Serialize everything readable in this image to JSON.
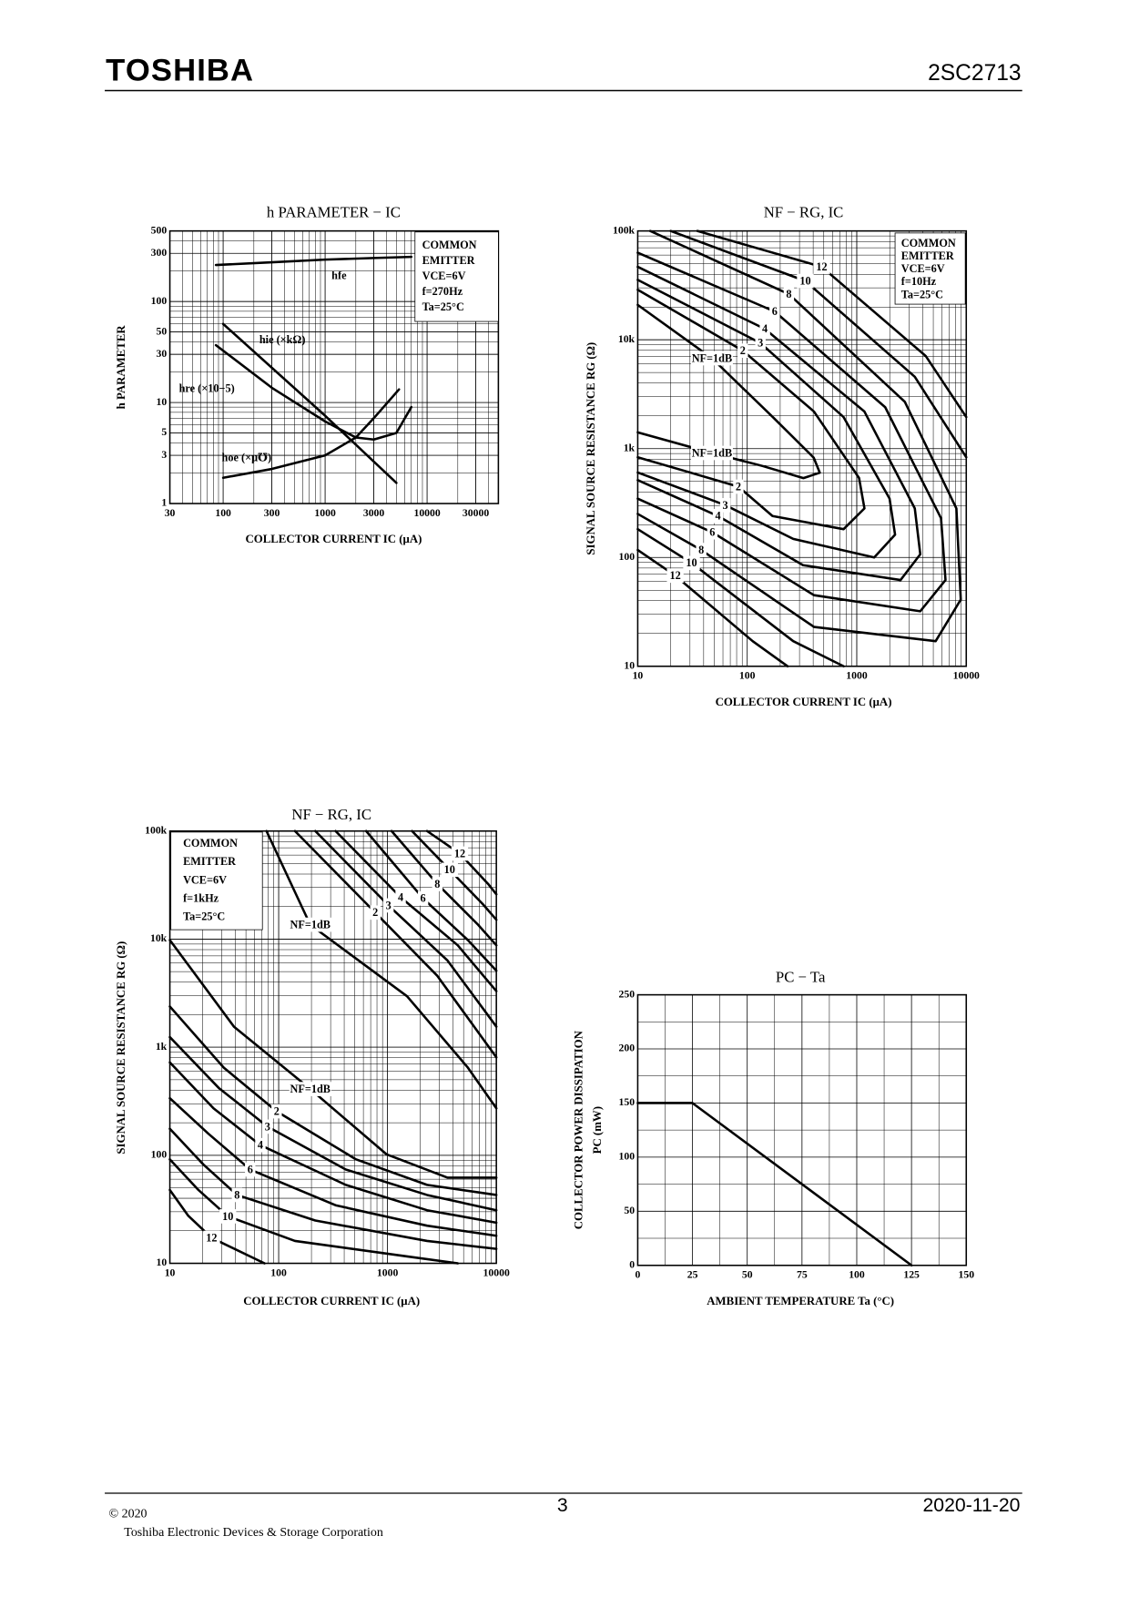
{
  "header": {
    "logo": "TOSHIBA",
    "part_number": "2SC2713"
  },
  "chart_data": [
    {
      "type": "line",
      "title": "h PARAMETER − IC",
      "xlabel": "COLLECTOR CURRENT IC (μA)",
      "ylabel": "h PARAMETER",
      "xscale": "log",
      "yscale": "log",
      "grid": true,
      "color": "#000000",
      "xlim": [
        30,
        50000
      ],
      "ylim": [
        1,
        500
      ],
      "xticks": [
        30,
        100,
        300,
        1000,
        3000,
        10000,
        30000
      ],
      "yticks": [
        1,
        3,
        5,
        10,
        30,
        50,
        100,
        300,
        500
      ],
      "conditions": [
        "COMMON",
        "EMITTER",
        "VCE=6V",
        "f=270Hz",
        "Ta=25°C"
      ],
      "series": [
        {
          "name": "hfe",
          "x": [
            85,
            300,
            1000,
            3000,
            7000
          ],
          "values": [
            230,
            245,
            260,
            270,
            277
          ]
        },
        {
          "name": "hie (×kΩ)",
          "x": [
            100,
            1000,
            5000
          ],
          "values": [
            60,
            7.4,
            1.6
          ]
        },
        {
          "name": "hre (×10−5)",
          "x": [
            85,
            300,
            1000,
            2000,
            3000,
            5000,
            7000
          ],
          "values": [
            37,
            14,
            6.5,
            4.5,
            4.3,
            5,
            9
          ]
        },
        {
          "name": "hoe (×μ℧)",
          "x": [
            100,
            300,
            1000,
            2000,
            3000,
            5300
          ],
          "values": [
            1.8,
            2.2,
            3,
            4.5,
            7,
            13.5
          ]
        }
      ]
    },
    {
      "type": "line",
      "title": "NF − RG, IC",
      "xlabel": "COLLECTOR CURRENT IC (μA)",
      "ylabel": "SIGNAL SOURCE RESISTANCE RG (Ω)",
      "xscale": "log",
      "yscale": "log",
      "grid": true,
      "color": "#000000",
      "xlim": [
        10,
        10000
      ],
      "ylim": [
        10,
        100000
      ],
      "xticks": [
        10,
        100,
        1000,
        10000
      ],
      "yticks": [
        10,
        100,
        {
          "value": 1000,
          "label": "1k"
        },
        {
          "value": 10000,
          "label": "10k"
        },
        {
          "value": 100000,
          "label": "100k"
        }
      ],
      "conditions": [
        "COMMON",
        "EMITTER",
        "VCE=6V",
        "f=10Hz",
        "Ta=25°C"
      ],
      "series": [
        {
          "name": "NF=1dB",
          "x": [
            10,
            47.6,
            171,
            404,
            460,
            326,
            138,
            47.6,
            10
          ],
          "values": [
            20900,
            6760,
            1950,
            826,
            600,
            536,
            692,
            912,
            1410
          ]
        },
        {
          "name": "2",
          "x": [
            10,
            91,
            407,
            1050,
            1175,
            759,
            170,
            83,
            10
          ],
          "values": [
            28800,
            7940,
            2190,
            537,
            282,
            182,
            240,
            447,
            832
          ]
        },
        {
          "name": "3",
          "x": [
            10,
            132,
            759,
            1995,
            2240,
            1445,
            263,
            63,
            10
          ],
          "values": [
            35500,
            9330,
            1950,
            347,
            162,
            100,
            148,
            302,
            603
          ]
        },
        {
          "name": "4",
          "x": [
            10,
            145,
            1175,
            3390,
            3800,
            2510,
            324,
            54,
            10
          ],
          "values": [
            46800,
            12600,
            2190,
            282,
            107,
            62,
            85,
            240,
            513
          ]
        },
        {
          "name": "6",
          "x": [
            10,
            178,
            1820,
            5890,
            6460,
            3800,
            407,
            48,
            10
          ],
          "values": [
            63100,
            18200,
            2400,
            229,
            62,
            32,
            45,
            170,
            347
          ]
        },
        {
          "name": "8",
          "x": [
            13,
            240,
            2750,
            8130,
            8910,
            5250,
            407,
            38,
            10
          ],
          "values": [
            100000,
            26300,
            2690,
            282,
            41,
            17,
            23,
            117,
            251
          ]
        },
        {
          "name": "10",
          "x": [
            20,
            339,
            3390,
            10000,
            null,
            10,
            31,
            263,
            759
          ],
          "values": [
            100000,
            34700,
            4570,
            832,
            null,
            182,
            89,
            17,
            10
          ]
        },
        {
          "name": "12",
          "x": [
            35,
            479,
            4270,
            10000,
            null,
            10,
            22,
            112,
            234
          ],
          "values": [
            100000,
            46800,
            7080,
            1950,
            null,
            117,
            68,
            17,
            10
          ]
        }
      ]
    },
    {
      "type": "line",
      "title": "NF − RG, IC",
      "xlabel": "COLLECTOR CURRENT IC (μA)",
      "ylabel": "SIGNAL SOURCE RESISTANCE RG (Ω)",
      "xscale": "log",
      "yscale": "log",
      "grid": true,
      "color": "#000000",
      "xlim": [
        10,
        10000
      ],
      "ylim": [
        10,
        100000
      ],
      "xticks": [
        10,
        100,
        1000,
        10000
      ],
      "yticks": [
        10,
        100,
        {
          "value": 1000,
          "label": "1k"
        },
        {
          "value": 10000,
          "label": "10k"
        },
        {
          "value": 100000,
          "label": "100k"
        }
      ],
      "conditions": [
        "COMMON",
        "EMITTER",
        "VCE=6V",
        "f=1kHz",
        "Ta=25°C"
      ],
      "series": [
        {
          "name": "NF=1dB",
          "x": [
            77.3,
            195,
            1510,
            5470,
            10000,
            null,
            10,
            38.8,
            195,
            979,
            3560,
            10000
          ],
          "values": [
            100000,
            13600,
            2960,
            647,
            272,
            null,
            9790,
            1550,
            410,
            102,
            62,
            62
          ]
        },
        {
          "name": "2",
          "x": [
            141,
            773,
            2870,
            10000,
            null,
            10,
            31.3,
            95.7,
            513,
            2310,
            10000
          ],
          "values": [
            100000,
            17600,
            4570,
            805,
            null,
            2380,
            647,
            255,
            91.6,
            53.2,
            42.9
          ]
        },
        {
          "name": "3",
          "x": [
            217,
            1020,
            3560,
            10000,
            null,
            10,
            28.1,
            78.9,
            414,
            2310,
            10000
          ],
          "values": [
            100000,
            20500,
            6340,
            1550,
            null,
            1240,
            420,
            184,
            73.8,
            42.9,
            31
          ]
        },
        {
          "name": "4",
          "x": [
            333,
            1320,
            4410,
            10000,
            null,
            10,
            25.2,
            67.9,
            414,
            2310,
            10000
          ],
          "values": [
            100000,
            24400,
            8780,
            3300,
            null,
            722,
            272,
            124,
            53.2,
            31,
            23.8
          ]
        },
        {
          "name": "6",
          "x": [
            637,
            2120,
            5470,
            10000,
            null,
            10,
            22.6,
            54.7,
            333,
            2310,
            10000
          ],
          "values": [
            100000,
            23800,
            9790,
            5100,
            null,
            337,
            158,
            73.8,
            34.5,
            22.3,
            18
          ]
        },
        {
          "name": "8",
          "x": [
            1090,
            2870,
            6790,
            10000,
            null,
            10,
            20.3,
            41.4,
            217,
            2310,
            10000
          ],
          "values": [
            100000,
            32300,
            13600,
            8780,
            null,
            176,
            82.2,
            42.9,
            24.9,
            16.1,
            13.6
          ]
        },
        {
          "name": "10",
          "x": [
            1680,
            3720,
            7560,
            10000,
            null,
            10,
            18.3,
            34.1,
            141,
            1510,
            4410
          ],
          "values": [
            100000,
            43800,
            20900,
            15100,
            null,
            91.6,
            47.7,
            27.2,
            16.1,
            11.6,
            10
          ]
        },
        {
          "name": "12",
          "x": [
            2310,
            4610,
            8420,
            10000,
            null,
            10,
            14.7,
            24.2,
            74
          ],
          "values": [
            100000,
            61900,
            32300,
            26000,
            null,
            47.7,
            27.7,
            17.2,
            10
          ]
        }
      ]
    },
    {
      "type": "line",
      "title": "PC − Ta",
      "xlabel": "AMBIENT TEMPERATURE Ta (°C)",
      "ylabel": [
        "COLLECTOR POWER DISSIPATION",
        "PC (mW)"
      ],
      "xscale": "linear",
      "yscale": "linear",
      "grid": true,
      "color": "#000000",
      "xlim": [
        0,
        150
      ],
      "ylim": [
        0,
        250
      ],
      "xticks": [
        0,
        25,
        50,
        75,
        100,
        125,
        150
      ],
      "yticks": [
        0,
        50,
        100,
        150,
        200,
        250
      ],
      "series": [
        {
          "name": null,
          "x": [
            0,
            25,
            125
          ],
          "values": [
            150,
            150,
            0
          ]
        }
      ]
    }
  ],
  "footer": {
    "copyright": "© 2020",
    "company": "Toshiba Electronic Devices & Storage Corporation",
    "page_number": "3",
    "date": "2020-11-20"
  }
}
